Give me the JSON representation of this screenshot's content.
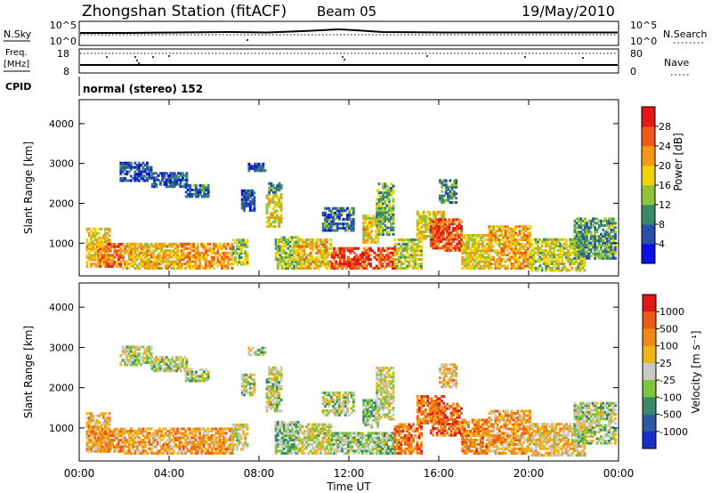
{
  "header": {
    "station": "Zhongshan Station (fitACF)",
    "beam": "Beam 05",
    "date": "19/May/2010"
  },
  "top_panels": {
    "nsky_label": "N.Sky",
    "nsky_ticks": [
      "10^5",
      "10^0"
    ],
    "nsearch_label": "N.Search",
    "nsearch_ticks": [
      "10^5",
      "10^0"
    ],
    "freq_label": "Freq.",
    "freq_unit": "[MHz]",
    "freq_ticks": [
      "18",
      "8"
    ],
    "nave_label": "Nave",
    "nave_ticks": [
      "80",
      "0"
    ],
    "cpid_label": "CPID",
    "cpid_text": "normal (stereo) 152"
  },
  "chart_data": [
    {
      "type": "heatmap",
      "quantity": "Power",
      "ylabel": "Slant Range [km]",
      "yticks": [
        "1000",
        "2000",
        "3000",
        "4000"
      ],
      "ylim": [
        180,
        4600
      ],
      "colorbar_label": "Power [dB]",
      "colorbar_ticks": [
        "4",
        "8",
        "12",
        "16",
        "20",
        "24",
        "28"
      ],
      "colorbar_range": [
        0,
        32
      ],
      "colors": [
        "#0a10e6",
        "#2b4fa8",
        "#3a8a6a",
        "#8fc43a",
        "#f0d200",
        "#f49a18",
        "#ec5a16",
        "#e01818"
      ],
      "echo_regions": [
        {
          "t": [
            0.3,
            1.3
          ],
          "r": [
            400,
            1350
          ],
          "level": 0.6
        },
        {
          "t": [
            0.8,
            1.9
          ],
          "r": [
            400,
            1000
          ],
          "level": 0.75
        },
        {
          "t": [
            1.9,
            4.5
          ],
          "r": [
            350,
            1000
          ],
          "level": 0.62
        },
        {
          "t": [
            4.5,
            6.8
          ],
          "r": [
            350,
            1000
          ],
          "level": 0.7
        },
        {
          "t": [
            6.8,
            7.5
          ],
          "r": [
            450,
            1100
          ],
          "level": 0.45
        },
        {
          "t": [
            1.8,
            3.2
          ],
          "r": [
            2550,
            3000
          ],
          "level": 0.2
        },
        {
          "t": [
            3.2,
            4.8
          ],
          "r": [
            2400,
            2750
          ],
          "level": 0.2
        },
        {
          "t": [
            4.7,
            5.7
          ],
          "r": [
            2150,
            2450
          ],
          "level": 0.22
        },
        {
          "t": [
            7.2,
            7.8
          ],
          "r": [
            1800,
            2300
          ],
          "level": 0.2
        },
        {
          "t": [
            7.5,
            8.3
          ],
          "r": [
            2800,
            3000
          ],
          "level": 0.2
        },
        {
          "t": [
            8.3,
            9.0
          ],
          "r": [
            1400,
            2200
          ],
          "level": 0.55
        },
        {
          "t": [
            8.4,
            9.0
          ],
          "r": [
            2200,
            2500
          ],
          "level": 0.3
        },
        {
          "t": [
            8.7,
            9.7
          ],
          "r": [
            350,
            1150
          ],
          "level": 0.45
        },
        {
          "t": [
            9.7,
            11.2
          ],
          "r": [
            350,
            1100
          ],
          "level": 0.62
        },
        {
          "t": [
            10.8,
            12.2
          ],
          "r": [
            1300,
            1900
          ],
          "level": 0.25
        },
        {
          "t": [
            11.2,
            14.0
          ],
          "r": [
            350,
            900
          ],
          "level": 0.85
        },
        {
          "t": [
            12.6,
            13.3
          ],
          "r": [
            1000,
            1700
          ],
          "level": 0.6
        },
        {
          "t": [
            13.2,
            14.0
          ],
          "r": [
            1200,
            2500
          ],
          "level": 0.4
        },
        {
          "t": [
            14.0,
            15.2
          ],
          "r": [
            350,
            1100
          ],
          "level": 0.5
        },
        {
          "t": [
            15.0,
            16.2
          ],
          "r": [
            1100,
            1800
          ],
          "level": 0.55
        },
        {
          "t": [
            15.6,
            17.0
          ],
          "r": [
            800,
            1600
          ],
          "level": 0.82
        },
        {
          "t": [
            16.0,
            16.8
          ],
          "r": [
            2000,
            2600
          ],
          "level": 0.3
        },
        {
          "t": [
            17.0,
            18.2
          ],
          "r": [
            350,
            1200
          ],
          "level": 0.55
        },
        {
          "t": [
            18.2,
            20.0
          ],
          "r": [
            350,
            1400
          ],
          "level": 0.65
        },
        {
          "t": [
            20.0,
            22.5
          ],
          "r": [
            300,
            1100
          ],
          "level": 0.5
        },
        {
          "t": [
            22.0,
            23.8
          ],
          "r": [
            600,
            1600
          ],
          "level": 0.35
        }
      ]
    },
    {
      "type": "heatmap",
      "quantity": "Velocity",
      "ylabel": "Slant Range [km]",
      "yticks": [
        "1000",
        "2000",
        "3000",
        "4000"
      ],
      "ylim": [
        180,
        4600
      ],
      "colorbar_label": "Velocity [m s⁻¹]",
      "colorbar_ticks": [
        "1000",
        "500",
        "100",
        "25",
        "-25",
        "-100",
        "-500",
        "-1000"
      ],
      "colors": [
        "#1830c8",
        "#2c5aa0",
        "#3a8a6a",
        "#7cc43a",
        "#c8c8c4",
        "#f0b418",
        "#f08a14",
        "#ea5a14",
        "#e01818"
      ],
      "echo_regions": [
        {
          "t": [
            0.3,
            1.3
          ],
          "r": [
            400,
            1350
          ],
          "level": 0.66
        },
        {
          "t": [
            0.8,
            1.9
          ],
          "r": [
            400,
            1000
          ],
          "level": 0.7
        },
        {
          "t": [
            1.9,
            4.5
          ],
          "r": [
            350,
            1000
          ],
          "level": 0.66
        },
        {
          "t": [
            4.5,
            6.8
          ],
          "r": [
            350,
            1000
          ],
          "level": 0.68
        },
        {
          "t": [
            6.8,
            7.5
          ],
          "r": [
            450,
            1100
          ],
          "level": 0.5
        },
        {
          "t": [
            1.8,
            3.2
          ],
          "r": [
            2550,
            3000
          ],
          "level": 0.46
        },
        {
          "t": [
            3.2,
            4.8
          ],
          "r": [
            2400,
            2750
          ],
          "level": 0.46
        },
        {
          "t": [
            4.7,
            5.7
          ],
          "r": [
            2150,
            2450
          ],
          "level": 0.46
        },
        {
          "t": [
            7.2,
            7.8
          ],
          "r": [
            1800,
            2300
          ],
          "level": 0.46
        },
        {
          "t": [
            7.5,
            8.3
          ],
          "r": [
            2800,
            3000
          ],
          "level": 0.46
        },
        {
          "t": [
            8.3,
            9.0
          ],
          "r": [
            1400,
            2200
          ],
          "level": 0.46
        },
        {
          "t": [
            8.4,
            9.0
          ],
          "r": [
            2200,
            2500
          ],
          "level": 0.5
        },
        {
          "t": [
            8.7,
            9.7
          ],
          "r": [
            350,
            1150
          ],
          "level": 0.4
        },
        {
          "t": [
            9.7,
            11.2
          ],
          "r": [
            350,
            1100
          ],
          "level": 0.5
        },
        {
          "t": [
            10.8,
            12.2
          ],
          "r": [
            1300,
            1900
          ],
          "level": 0.46
        },
        {
          "t": [
            11.2,
            14.0
          ],
          "r": [
            350,
            900
          ],
          "level": 0.42
        },
        {
          "t": [
            12.6,
            13.3
          ],
          "r": [
            1000,
            1700
          ],
          "level": 0.38
        },
        {
          "t": [
            13.2,
            14.0
          ],
          "r": [
            1200,
            2500
          ],
          "level": 0.5
        },
        {
          "t": [
            14.0,
            15.2
          ],
          "r": [
            350,
            1100
          ],
          "level": 0.75
        },
        {
          "t": [
            15.0,
            16.2
          ],
          "r": [
            1100,
            1800
          ],
          "level": 0.78
        },
        {
          "t": [
            15.6,
            17.0
          ],
          "r": [
            800,
            1600
          ],
          "level": 0.8
        },
        {
          "t": [
            16.0,
            16.8
          ],
          "r": [
            2000,
            2600
          ],
          "level": 0.62
        },
        {
          "t": [
            17.0,
            18.2
          ],
          "r": [
            350,
            1200
          ],
          "level": 0.74
        },
        {
          "t": [
            18.2,
            20.0
          ],
          "r": [
            350,
            1400
          ],
          "level": 0.68
        },
        {
          "t": [
            20.0,
            22.5
          ],
          "r": [
            300,
            1100
          ],
          "level": 0.58
        },
        {
          "t": [
            22.0,
            23.8
          ],
          "r": [
            600,
            1600
          ],
          "level": 0.45
        }
      ]
    }
  ],
  "xaxis": {
    "ticks": [
      "00:00",
      "04:00",
      "08:00",
      "12:00",
      "16:00",
      "20:00",
      "00:00"
    ],
    "xlabel": "Time UT",
    "xlim_hours": [
      0,
      24
    ]
  }
}
